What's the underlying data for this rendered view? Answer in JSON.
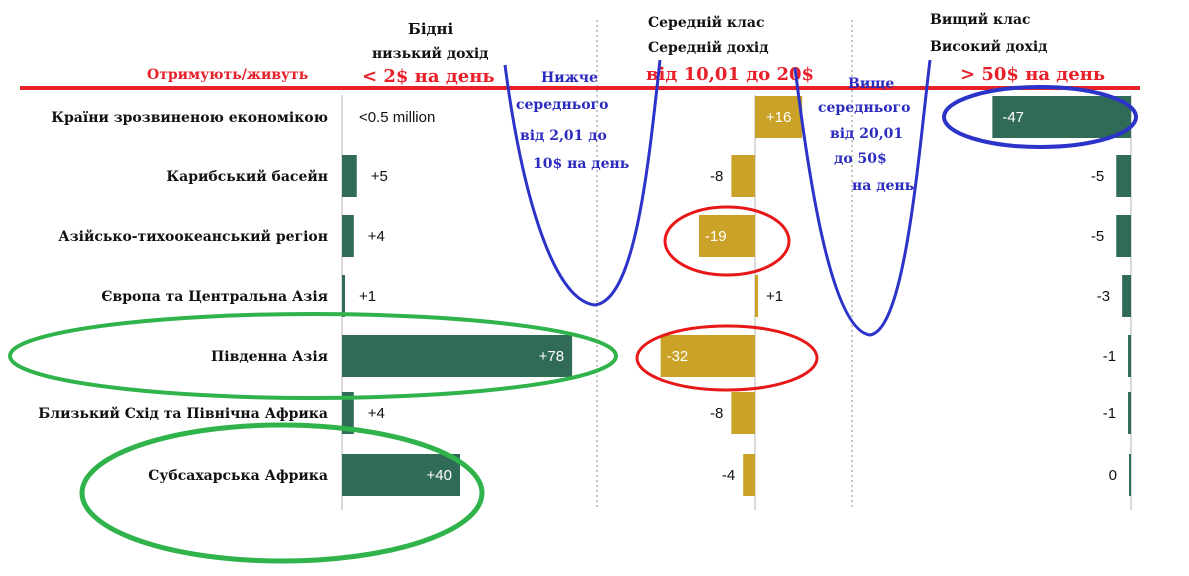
{
  "header": {
    "poor_title": "Бідні",
    "poor_subtitle": "низький дохід",
    "poor_range": "< 2$ на день",
    "middle_title": "Середній клас",
    "middle_subtitle": "Середній дохід",
    "middle_range": "від 10,01 до 20$",
    "upper_title": "Вищий клас",
    "upper_subtitle": "Високий дохід",
    "upper_range": "> 50$ на день",
    "row_header": "Отримують/живуть"
  },
  "annotations": {
    "lower_middle": [
      "Нижче",
      "середнього",
      "від 2,01 до",
      "10$ на день"
    ],
    "upper_middle": [
      "Вище",
      "середнього",
      "від 20,01",
      "до 50$",
      "на день"
    ]
  },
  "colors": {
    "poor": "#2f6b57",
    "middle": "#c9a227",
    "upper": "#2f6b57",
    "header_red": "#e8202a",
    "annotation_blue": "#2b2bbf",
    "circle_red": "#e81818",
    "circle_green": "#2fb34a",
    "circle_blue": "#2b33c8",
    "dotted": "#9e9e9e"
  },
  "chart_data": {
    "type": "bar",
    "categories": [
      "Країни зрозвиненою економікою",
      "Карибський басейн",
      "Азійсько-тихоокеанський регіон",
      "Європа та Центральна Азія",
      "Південна Азія",
      "Близький Схід та Північна Африка",
      "Субсахарська Африка"
    ],
    "series": [
      {
        "name": "Бідні",
        "values": [
          0,
          5,
          4,
          1,
          78,
          4,
          40
        ],
        "labels": [
          "<0.5 million",
          "+5",
          "+4",
          "+1",
          "+78",
          "+4",
          "+40"
        ]
      },
      {
        "name": "Середній клас",
        "values": [
          16,
          -8,
          -19,
          1,
          -32,
          -8,
          -4
        ],
        "labels": [
          "+16",
          "-8",
          "-19",
          "+1",
          "-32",
          "-8",
          "-4"
        ]
      },
      {
        "name": "Вищий клас",
        "values": [
          -47,
          -5,
          -5,
          -3,
          -1,
          -1,
          0
        ],
        "labels": [
          "-47",
          "-5",
          "-5",
          "-3",
          "-1",
          "-1",
          "0"
        ]
      }
    ]
  }
}
